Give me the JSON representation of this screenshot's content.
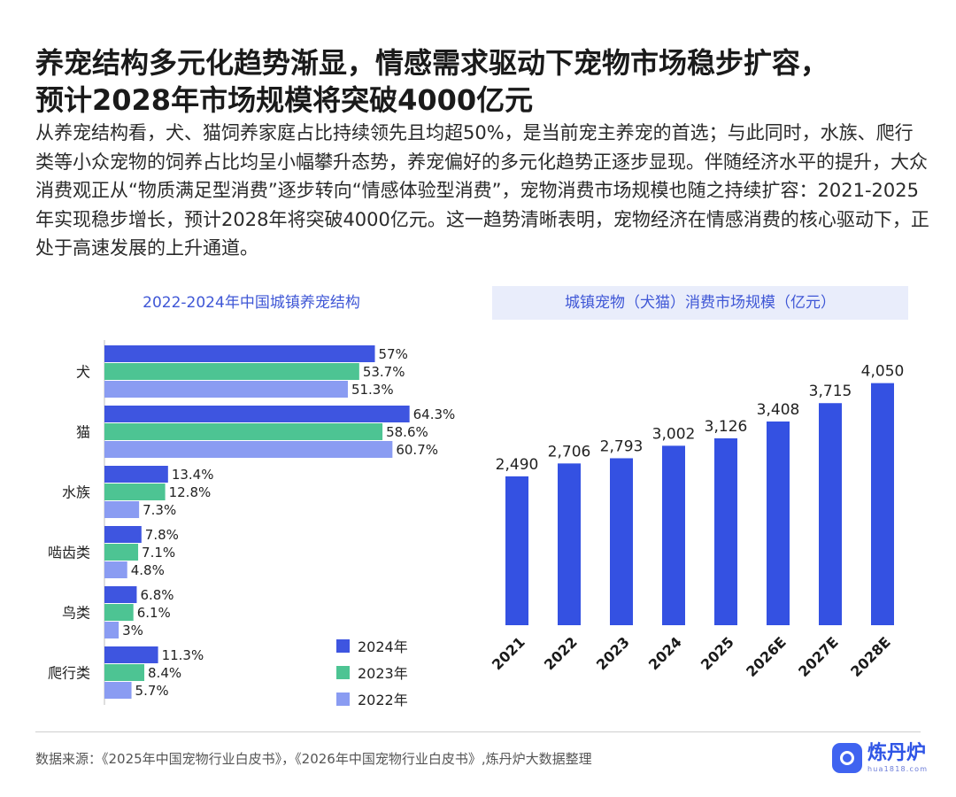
{
  "title": {
    "line1": "养宠结构多元化趋势渐显，情感需求驱动下宠物市场稳步扩容，",
    "line2": "预计2028年市场规模将突破4000亿元"
  },
  "intro": "从养宠结构看，犬、猫饲养家庭占比持续领先且均超50%，是当前宠主养宠的首选；与此同时，水族、爬行类等小众宠物的饲养占比均呈小幅攀升态势，养宠偏好的多元化趋势正逐步显现。伴随经济水平的提升，大众消费观正从“物质满足型消费”逐步转向“情感体验型消费”，宠物消费市场规模也随之持续扩容：2021-2025年实现稳步增长，预计2028年将突破4000亿元。这一趋势清晰表明，宠物经济在情感消费的核心驱动下，正处于高速发展的上升通道。",
  "source": "数据来源：《2025年中国宠物行业白皮书》，《2026年中国宠物行业白皮书》,炼丹炉大数据整理",
  "logo": {
    "name": "炼丹炉",
    "url": "hua1818.com"
  },
  "chart_data": [
    {
      "type": "bar",
      "orientation": "horizontal",
      "title": "2022-2024年中国城镇养宠结构",
      "categories": [
        "犬",
        "猫",
        "水族",
        "啮齿类",
        "鸟类",
        "爬行类"
      ],
      "series": [
        {
          "name": "2024年",
          "color": "#3e55e0",
          "values": [
            57,
            64.3,
            13.4,
            7.8,
            6.8,
            11.3
          ],
          "labels": [
            "57%",
            "64.3%",
            "13.4%",
            "7.8%",
            "6.8%",
            "11.3%"
          ]
        },
        {
          "name": "2023年",
          "color": "#4dc493",
          "values": [
            53.7,
            58.6,
            12.8,
            7.1,
            6.1,
            8.4
          ],
          "labels": [
            "53.7%",
            "58.6%",
            "12.8%",
            "7.1%",
            "6.1%",
            "8.4%"
          ]
        },
        {
          "name": "2022年",
          "color": "#8a9cf2",
          "values": [
            51.3,
            60.7,
            7.3,
            4.8,
            3,
            5.7
          ],
          "labels": [
            "51.3%",
            "60.7%",
            "7.3%",
            "4.8%",
            "3%",
            "5.7%"
          ]
        }
      ],
      "xlim": [
        0,
        70
      ],
      "legend": "bottom-right"
    },
    {
      "type": "bar",
      "title": "城镇宠物（犬猫）消费市场规模（亿元）",
      "categories": [
        "2021",
        "2022",
        "2023",
        "2024",
        "2025",
        "2026E",
        "2027E",
        "2028E"
      ],
      "values": [
        2490,
        2706,
        2793,
        3002,
        3126,
        3408,
        3715,
        4050
      ],
      "labels": [
        "2,490",
        "2,706",
        "2,793",
        "3,002",
        "3,126",
        "3,408",
        "3,715",
        "4,050"
      ],
      "color": "#3451e2",
      "ylim": [
        0,
        4400
      ]
    }
  ]
}
